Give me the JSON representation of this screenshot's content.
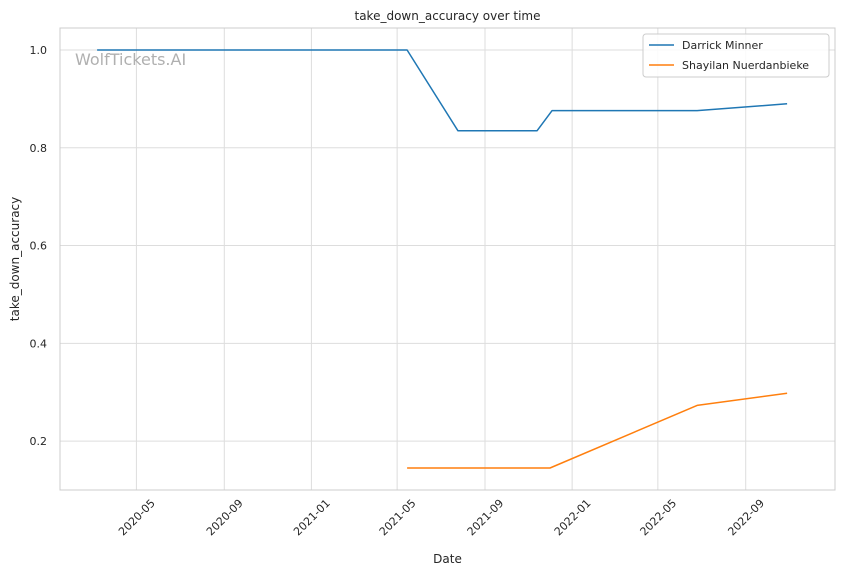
{
  "chart_data": {
    "type": "line",
    "title": "take_down_accuracy over time",
    "xlabel": "Date",
    "ylabel": "take_down_accuracy",
    "watermark": "WolfTickets.AI",
    "xlim": [
      "2020-01-15",
      "2023-01-04"
    ],
    "ylim": [
      0.1,
      1.045
    ],
    "x_ticks": [
      "2020-05-01",
      "2020-09-01",
      "2021-01-01",
      "2021-05-01",
      "2021-09-01",
      "2022-01-01",
      "2022-05-01",
      "2022-09-01"
    ],
    "x_tick_labels": [
      "2020-05",
      "2020-09",
      "2021-01",
      "2021-05",
      "2021-09",
      "2022-01",
      "2022-05",
      "2022-09"
    ],
    "y_ticks": [
      0.2,
      0.4,
      0.6,
      0.8,
      1.0
    ],
    "y_tick_labels": [
      "0.2",
      "0.4",
      "0.6",
      "0.8",
      "1.0"
    ],
    "grid": true,
    "legend_position": "top-right",
    "series": [
      {
        "name": "Darrick Minner",
        "color": "#1f77b4",
        "points": [
          {
            "x": "2020-03-07",
            "y": 1.0
          },
          {
            "x": "2021-05-15",
            "y": 1.0
          },
          {
            "x": "2021-07-25",
            "y": 0.835
          },
          {
            "x": "2021-11-13",
            "y": 0.835
          },
          {
            "x": "2021-12-04",
            "y": 0.876
          },
          {
            "x": "2022-06-25",
            "y": 0.876
          },
          {
            "x": "2022-10-29",
            "y": 0.89
          }
        ]
      },
      {
        "name": "Shayilan Nuerdanbieke",
        "color": "#ff7f0e",
        "points": [
          {
            "x": "2021-05-15",
            "y": 0.145
          },
          {
            "x": "2021-12-01",
            "y": 0.145
          },
          {
            "x": "2022-06-25",
            "y": 0.273
          },
          {
            "x": "2022-10-29",
            "y": 0.298
          }
        ]
      }
    ]
  }
}
